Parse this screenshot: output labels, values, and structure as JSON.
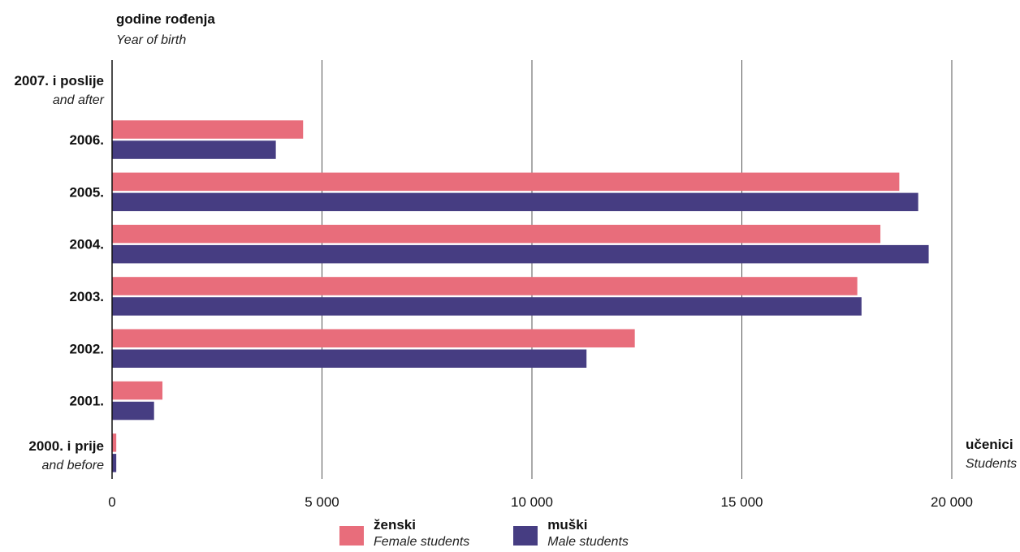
{
  "chart_data": {
    "type": "bar",
    "orientation": "horizontal",
    "ylabel": "godine rođenja",
    "ylabel_en": "Year of birth",
    "xlabel": "učenici",
    "xlabel_en": "Students",
    "xlim": [
      0,
      20000
    ],
    "xticks": [
      {
        "value": 0,
        "label": "0"
      },
      {
        "value": 5000,
        "label": "5 000"
      },
      {
        "value": 10000,
        "label": "10 000"
      },
      {
        "value": 15000,
        "label": "15 000"
      },
      {
        "value": 20000,
        "label": "20 000"
      }
    ],
    "grid": true,
    "legend_position": "bottom",
    "categories": [
      {
        "label": "2007. i poslije",
        "label_en": "and after"
      },
      {
        "label": "2006.",
        "label_en": ""
      },
      {
        "label": "2005.",
        "label_en": ""
      },
      {
        "label": "2004.",
        "label_en": ""
      },
      {
        "label": "2003.",
        "label_en": ""
      },
      {
        "label": "2002.",
        "label_en": ""
      },
      {
        "label": "2001.",
        "label_en": ""
      },
      {
        "label": "2000. i prije",
        "label_en": "and before"
      }
    ],
    "series": [
      {
        "name": "ženski",
        "name_en": "Female students",
        "color": "#e86d7b",
        "values": [
          0,
          4550,
          18750,
          18300,
          17750,
          12450,
          1200,
          100
        ]
      },
      {
        "name": "muški",
        "name_en": "Male students",
        "color": "#463d82",
        "values": [
          0,
          3900,
          19200,
          19450,
          17850,
          11300,
          1000,
          100
        ]
      }
    ]
  }
}
